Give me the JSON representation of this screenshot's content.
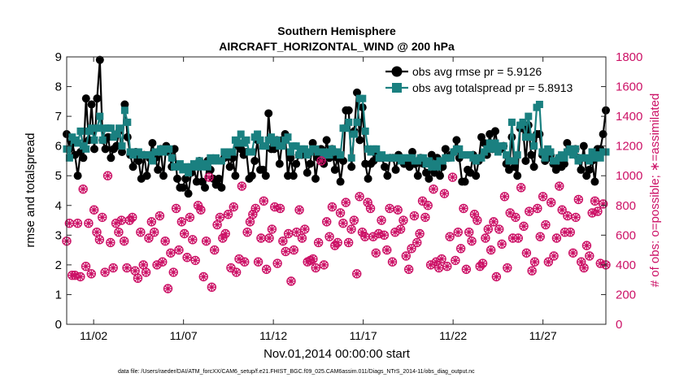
{
  "chart_data": {
    "type": "line",
    "title": "Southern Hemisphere",
    "subtitle": "AIRCRAFT_HORIZONTAL_WIND @ 200 hPa",
    "xlabel": "Nov.01,2014 00:00:00 start",
    "ylabel": "rmse and totalspread",
    "y2label": "# of obs: o=possible; ∗=assimilated",
    "footer": "data file: /Users/raeder/DAI/ATM_forcXX/CAM6_setup/f.e21.FHIST_BGC.f09_025.CAM6assim.011/Diags_NTrS_2014-11/obs_diag_output.nc",
    "xlim": [
      0.5,
      30.5
    ],
    "ylim": [
      0,
      9
    ],
    "y2lim": [
      0,
      1800
    ],
    "xticks": [
      {
        "label": "11/02",
        "day": 2
      },
      {
        "label": "11/07",
        "day": 7
      },
      {
        "label": "11/12",
        "day": 12
      },
      {
        "label": "11/17",
        "day": 17
      },
      {
        "label": "11/22",
        "day": 22
      },
      {
        "label": "11/27",
        "day": 27
      }
    ],
    "yticks": [
      "0",
      "1",
      "2",
      "3",
      "4",
      "5",
      "6",
      "7",
      "8",
      "9"
    ],
    "y2ticks": [
      "0",
      "200",
      "400",
      "600",
      "800",
      "1000",
      "1200",
      "1400",
      "1600",
      "1800"
    ],
    "legend_position": "top-right",
    "grid": false,
    "series": [
      {
        "name": "obs avg rmse pr = 5.9126",
        "color": "#000000",
        "axis": "left",
        "values": [
          6.4,
          5.9,
          6.1,
          5.7,
          5.0,
          5.8,
          5.6,
          7.6,
          6.2,
          7.4,
          5.9,
          7.6,
          8.9,
          6.2,
          5.9,
          6.3,
          5.6,
          5.9,
          6.0,
          6.5,
          5.8,
          7.4,
          6.3,
          5.7,
          5.3,
          5.8,
          5.5,
          4.9,
          5.7,
          5.0,
          5.6,
          6.1,
          5.6,
          5.2,
          5.9,
          5.0,
          6.0,
          5.8,
          5.3,
          5.9,
          4.9,
          4.6,
          4.6,
          4.9,
          4.4,
          5.1,
          5.3,
          4.8,
          5.5,
          4.8,
          4.6,
          5.5,
          5.2,
          4.9,
          4.7,
          4.9,
          4.6,
          5.6,
          5.7,
          5.3,
          5.6,
          5.0,
          6.0,
          5.9,
          5.7,
          5.8,
          4.9,
          5.0,
          5.5,
          6.2,
          5.2,
          5.2,
          5.0,
          7.1,
          5.9,
          5.9,
          6.2,
          5.4,
          6.2,
          6.4,
          5.0,
          5.6,
          5.0,
          5.4,
          5.7,
          5.7,
          5.8,
          5.1,
          5.4,
          6.1,
          4.9,
          5.6,
          5.9,
          5.4,
          6.2,
          5.6,
          5.9,
          5.2,
          5.6,
          4.8,
          5.5,
          7.2,
          7.2,
          5.3,
          6.5,
          7.8,
          6.2,
          7.3,
          5.4,
          4.9,
          5.4,
          5.5,
          5.7,
          5.6,
          5.6,
          5.3,
          5.0,
          5.6,
          5.6,
          5.2,
          5.7,
          5.6,
          5.4,
          5.4,
          5.3,
          5.8,
          5.4,
          5.0,
          5.6,
          5.4,
          5.1,
          4.9,
          5.7,
          5.1,
          5.6,
          5.0,
          5.3,
          5.9,
          5.6,
          5.7,
          5.8,
          6.2,
          5.6,
          4.8,
          4.8,
          5.2,
          5.1,
          5.7,
          5.0,
          5.5,
          6.3,
          6.1,
          5.7,
          6.4,
          5.9,
          6.5,
          5.9,
          5.9,
          6.0,
          5.4,
          5.2,
          6.3,
          5.3,
          5.0,
          6.6,
          6.6,
          5.5,
          6.7,
          5.7,
          5.3,
          6.4,
          6.4,
          5.7,
          5.5,
          5.6,
          5.7,
          5.4,
          5.2,
          5.6,
          5.3,
          5.4,
          6.1,
          5.9,
          5.8,
          5.9,
          5.6,
          5.2,
          6.0,
          5.0,
          5.2,
          5.5,
          4.8,
          5.9,
          5.9,
          6.4,
          7.2
        ]
      },
      {
        "name": "obs avg totalspread pr = 5.8913",
        "color": "#1a8080",
        "axis": "left",
        "values": [
          5.9,
          5.6,
          6.3,
          6.2,
          6.1,
          6.5,
          6.0,
          5.9,
          6.5,
          6.6,
          6.2,
          6.6,
          7.0,
          6.2,
          6.6,
          6.6,
          6.6,
          6.3,
          6.4,
          6.6,
          6.0,
          7.2,
          6.8,
          5.8,
          5.7,
          5.8,
          5.8,
          5.7,
          5.7,
          5.7,
          5.7,
          5.5,
          5.8,
          5.8,
          5.9,
          5.8,
          5.9,
          5.9,
          5.6,
          5.3,
          5.3,
          5.4,
          5.2,
          5.3,
          5.1,
          5.3,
          5.4,
          5.3,
          5.5,
          5.3,
          5.4,
          5.3,
          5.6,
          5.5,
          5.6,
          5.5,
          5.5,
          5.8,
          5.7,
          5.8,
          5.8,
          6.2,
          6.1,
          6.4,
          6.1,
          6.2,
          5.8,
          5.8,
          6.3,
          6.4,
          6.2,
          6.0,
          6.0,
          6.2,
          6.3,
          6.1,
          6.2,
          6.0,
          6.0,
          6.2,
          6.3,
          5.8,
          6.0,
          6.0,
          5.7,
          5.9,
          5.9,
          5.7,
          5.8,
          5.9,
          5.9,
          5.8,
          5.8,
          5.7,
          5.8,
          5.7,
          5.9,
          5.8,
          5.8,
          5.7,
          6.6,
          6.6,
          6.8,
          5.6,
          6.4,
          6.8,
          7.6,
          7.6,
          6.5,
          5.9,
          5.8,
          5.9,
          5.9,
          5.6,
          5.7,
          5.6,
          5.6,
          5.6,
          5.6,
          5.6,
          5.6,
          5.5,
          5.6,
          5.6,
          5.6,
          5.6,
          5.5,
          5.5,
          5.6,
          5.6,
          5.4,
          5.5,
          5.3,
          5.4,
          5.3,
          5.5,
          5.5,
          5.6,
          5.6,
          5.6,
          5.8,
          5.9,
          5.9,
          5.7,
          5.7,
          5.7,
          5.7,
          5.6,
          5.5,
          5.6,
          5.6,
          5.8,
          5.9,
          6.1,
          5.9,
          6.1,
          5.8,
          6.0,
          6.0,
          5.7,
          5.5,
          6.8,
          5.5,
          5.7,
          6.7,
          6.8,
          6.3,
          7.0,
          6.3,
          6.0,
          7.3,
          7.4,
          5.8,
          5.6,
          5.9,
          5.8,
          5.5,
          5.5,
          5.6,
          5.7,
          5.6,
          5.8,
          5.9,
          5.7,
          5.9,
          5.5,
          5.6,
          5.6,
          5.6,
          5.5,
          5.8,
          5.6,
          5.7,
          5.6,
          5.8,
          5.8
        ]
      },
      {
        "name": "# of obs possible",
        "color": "#cc1166",
        "axis": "right",
        "marker": "circle",
        "values": [
          560,
          680,
          330,
          330,
          680,
          320,
          910,
          390,
          680,
          340,
          770,
          620,
          570,
          720,
          350,
          1000,
          550,
          380,
          680,
          620,
          700,
          560,
          380,
          700,
          720,
          360,
          310,
          620,
          400,
          350,
          580,
          690,
          620,
          400,
          730,
          420,
          560,
          240,
          480,
          350,
          780,
          500,
          690,
          610,
          450,
          720,
          570,
          430,
          800,
          770,
          320,
          560,
          990,
          250,
          500,
          670,
          720,
          580,
          610,
          740,
          380,
          790,
          350,
          440,
          930,
          420,
          620,
          690,
          740,
          780,
          420,
          580,
          830,
          370,
          580,
          640,
          790,
          410,
          780,
          560,
          490,
          610,
          290,
          500,
          620,
          770,
          580,
          640,
          420,
          430,
          440,
          380,
          550,
          1100,
          400,
          690,
          590,
          790,
          530,
          550,
          750,
          680,
          820,
          550,
          640,
          700,
          340,
          860,
          620,
          590,
          820,
          780,
          590,
          480,
          610,
          700,
          600,
          500,
          780,
          420,
          620,
          770,
          640,
          700,
          460,
          370,
          510,
          730,
          550,
          610,
          830,
          720,
          800,
          400,
          910,
          420,
          380,
          440,
          880,
          390,
          590,
          990,
          430,
          620,
          510,
          780,
          370,
          620,
          560,
          740,
          700,
          390,
          410,
          580,
          640,
          500,
          690,
          320,
          640,
          540,
          860,
          380,
          750,
          580,
          720,
          580,
          920,
          660,
          480,
          760,
          360,
          420,
          780,
          590,
          860,
          670,
          420,
          820,
          460,
          580,
          930,
          770,
          620,
          730,
          620,
          480,
          720,
          840,
          420,
          380,
          530,
          460,
          750,
          830,
          760,
          410,
          810,
          400
        ]
      },
      {
        "name": "# of obs assimilated",
        "color": "#cc1166",
        "axis": "right",
        "marker": "asterisk",
        "values": [
          560,
          680,
          330,
          330,
          680,
          320,
          910,
          390,
          680,
          340,
          770,
          620,
          570,
          720,
          350,
          1000,
          550,
          380,
          680,
          620,
          700,
          560,
          380,
          700,
          720,
          360,
          310,
          620,
          400,
          350,
          580,
          690,
          620,
          400,
          730,
          420,
          560,
          240,
          480,
          350,
          780,
          500,
          690,
          610,
          450,
          720,
          570,
          430,
          800,
          770,
          320,
          560,
          990,
          250,
          500,
          670,
          720,
          580,
          610,
          740,
          380,
          790,
          350,
          440,
          930,
          420,
          620,
          690,
          740,
          780,
          420,
          580,
          830,
          370,
          580,
          640,
          790,
          410,
          780,
          560,
          490,
          610,
          290,
          500,
          620,
          770,
          580,
          640,
          420,
          430,
          440,
          380,
          550,
          1100,
          400,
          690,
          590,
          790,
          530,
          550,
          750,
          680,
          820,
          550,
          640,
          700,
          340,
          860,
          620,
          590,
          820,
          780,
          590,
          480,
          610,
          700,
          600,
          500,
          780,
          420,
          620,
          770,
          640,
          700,
          460,
          370,
          510,
          730,
          550,
          610,
          830,
          720,
          800,
          400,
          910,
          420,
          380,
          440,
          880,
          390,
          590,
          990,
          430,
          620,
          510,
          780,
          370,
          620,
          560,
          740,
          700,
          390,
          410,
          580,
          640,
          500,
          690,
          320,
          640,
          540,
          860,
          380,
          750,
          580,
          720,
          580,
          920,
          660,
          480,
          760,
          360,
          420,
          780,
          590,
          860,
          670,
          420,
          820,
          460,
          580,
          930,
          770,
          620,
          730,
          620,
          480,
          720,
          840,
          420,
          380,
          530,
          460,
          750,
          830,
          760,
          410,
          810,
          400
        ]
      }
    ]
  }
}
